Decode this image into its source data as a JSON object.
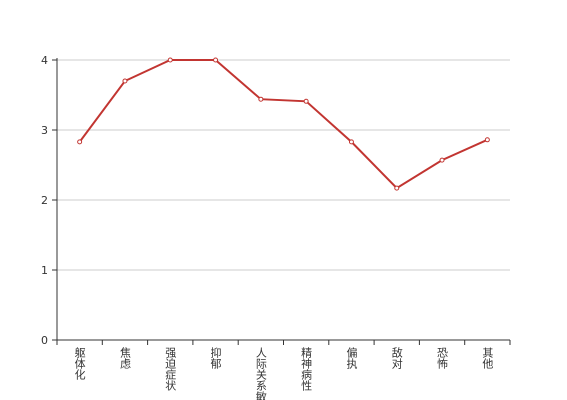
{
  "chart_data": {
    "type": "line",
    "categories": [
      "躯体化",
      "焦虑",
      "强迫症状",
      "抑郁",
      "人际关系敏感",
      "精神病性",
      "偏执",
      "敌对",
      "恐怖",
      "其他"
    ],
    "values": [
      2.83,
      3.7,
      4,
      4,
      3.44,
      3.41,
      2.83,
      2.17,
      2.57,
      2.86
    ],
    "color": "#c23531",
    "ylim": [
      0,
      4
    ],
    "yticks": [
      0,
      1,
      2,
      3,
      4
    ],
    "grid": true
  }
}
